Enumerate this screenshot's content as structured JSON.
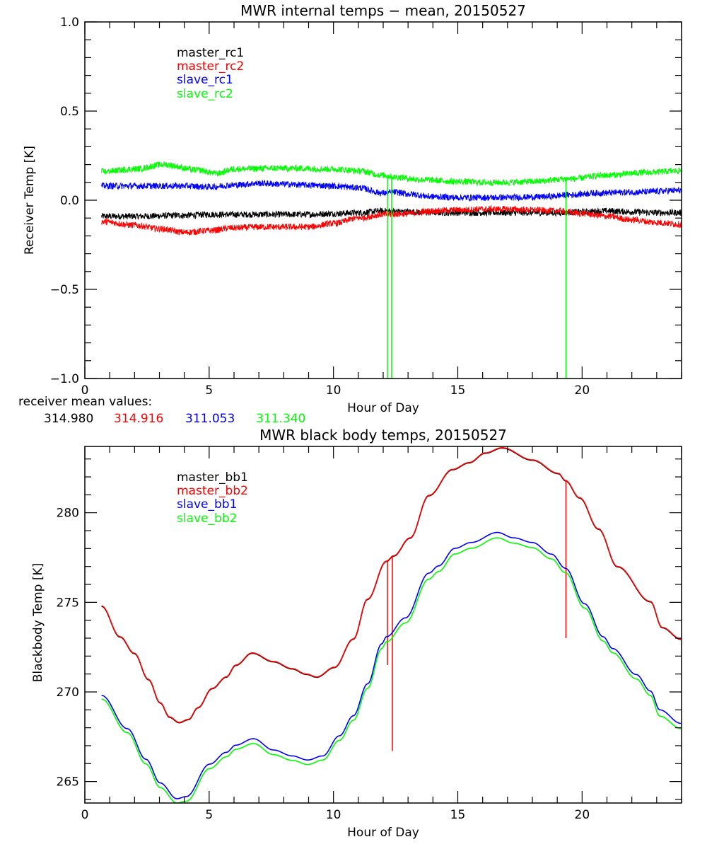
{
  "chart_data": [
    {
      "type": "line",
      "title": "MWR internal temps − mean, 20150527",
      "xlabel": "Hour of Day",
      "ylabel": "Receiver Temp [K]",
      "xlim": [
        0,
        24
      ],
      "ylim": [
        -1.0,
        1.0
      ],
      "xticks": [
        0,
        5,
        10,
        15,
        20
      ],
      "xtick_labels": [
        "0",
        "5",
        "10",
        "15",
        "20"
      ],
      "x_minor_step": 1,
      "yticks": [
        -1.0,
        -0.5,
        0.0,
        0.5,
        1.0
      ],
      "ytick_labels": [
        "−1.0",
        "−0.5",
        "0.0",
        "0.5",
        "1.0"
      ],
      "y_minor_step": 0.1,
      "grid": false,
      "legend_position": "top-left",
      "noise_amplitude": 0.018,
      "series": [
        {
          "name": "master_rc1",
          "color": "#000000",
          "x": [
            0.67,
            2,
            4,
            5,
            7,
            9,
            10,
            11,
            12,
            13,
            14,
            15,
            16,
            17,
            18,
            19,
            20,
            21,
            22,
            23,
            24
          ],
          "y": [
            -0.09,
            -0.09,
            -0.085,
            -0.08,
            -0.08,
            -0.08,
            -0.075,
            -0.07,
            -0.06,
            -0.065,
            -0.07,
            -0.07,
            -0.07,
            -0.07,
            -0.07,
            -0.07,
            -0.065,
            -0.06,
            -0.065,
            -0.07,
            -0.07
          ]
        },
        {
          "name": "master_rc2",
          "color": "#ff0000",
          "x": [
            0.67,
            2,
            3,
            4,
            5,
            6,
            7,
            8,
            9,
            10,
            11,
            12,
            13,
            14,
            15,
            16,
            17,
            18,
            19,
            20,
            21,
            22,
            23,
            24
          ],
          "y": [
            -0.12,
            -0.14,
            -0.16,
            -0.18,
            -0.17,
            -0.155,
            -0.15,
            -0.15,
            -0.15,
            -0.13,
            -0.1,
            -0.08,
            -0.075,
            -0.06,
            -0.055,
            -0.05,
            -0.05,
            -0.055,
            -0.06,
            -0.075,
            -0.09,
            -0.11,
            -0.125,
            -0.135
          ]
        },
        {
          "name": "slave_rc1",
          "color": "#0000ff",
          "x": [
            0.67,
            2,
            4,
            5,
            6,
            7,
            8,
            9,
            10,
            11,
            12,
            12.5,
            13,
            14,
            15,
            16,
            17,
            18,
            18.5,
            19.5,
            20.5,
            22,
            24
          ],
          "y": [
            0.08,
            0.08,
            0.08,
            0.075,
            0.085,
            0.095,
            0.09,
            0.085,
            0.08,
            0.07,
            0.04,
            0.045,
            0.035,
            0.02,
            0.015,
            0.015,
            0.015,
            0.018,
            0.02,
            0.03,
            0.04,
            0.045,
            0.055
          ]
        },
        {
          "name": "slave_rc2",
          "color": "#00ff00",
          "x": [
            0.67,
            2,
            3.2,
            4.5,
            5.3,
            6,
            8,
            10,
            11,
            12,
            12.5,
            13.5,
            15,
            16,
            17,
            18,
            19.5,
            21,
            22.5,
            24
          ],
          "y": [
            0.16,
            0.175,
            0.2,
            0.17,
            0.15,
            0.175,
            0.18,
            0.175,
            0.165,
            0.14,
            0.13,
            0.115,
            0.105,
            0.1,
            0.1,
            0.105,
            0.12,
            0.14,
            0.155,
            0.165
          ],
          "spikes": [
            {
              "x": 12.17,
              "to": -1.0
            },
            {
              "x": 12.34,
              "to": -1.0
            },
            {
              "x": 19.35,
              "to": -1.0
            }
          ]
        }
      ],
      "annotations": {
        "label": "receiver mean values:",
        "values": [
          {
            "text": "314.980",
            "color": "#000000"
          },
          {
            "text": "314.916",
            "color": "#ff0000"
          },
          {
            "text": "311.053",
            "color": "#0000ff"
          },
          {
            "text": "311.340",
            "color": "#00ff00"
          }
        ]
      }
    },
    {
      "type": "line",
      "title": "MWR black body temps, 20150527",
      "xlabel": "Hour of Day",
      "ylabel": "Blackbody Temp [K]",
      "xlim": [
        0,
        24
      ],
      "ylim": [
        263.8,
        283.7
      ],
      "xticks": [
        0,
        5,
        10,
        15,
        20
      ],
      "xtick_labels": [
        "0",
        "5",
        "10",
        "15",
        "20"
      ],
      "x_minor_step": 1,
      "yticks": [
        265,
        270,
        275,
        280
      ],
      "ytick_labels": [
        "265",
        "270",
        "275",
        "280"
      ],
      "y_minor_step": 1,
      "grid": false,
      "legend_position": "top-left",
      "series": [
        {
          "name": "master_bb1",
          "color": "#000000",
          "x": [
            0.67,
            1.42,
            1.99,
            2.56,
            3.03,
            3.41,
            3.79,
            4.17,
            4.55,
            5.12,
            5.69,
            6.07,
            6.73,
            7.58,
            8.34,
            8.9,
            9.33,
            10.04,
            10.8,
            11.37,
            12.13,
            12.42,
            13.08,
            13.84,
            14.79,
            15.45,
            16.11,
            16.78,
            18.0,
            19.05,
            19.33,
            19.9,
            20.66,
            21.42,
            22.75,
            23.22,
            23.98
          ],
          "y": [
            274.8,
            273.08,
            272.16,
            270.7,
            269.4,
            268.6,
            268.3,
            268.47,
            269.13,
            270.2,
            270.84,
            271.5,
            272.18,
            271.7,
            271.3,
            271.0,
            270.84,
            271.38,
            272.96,
            275.18,
            277.3,
            277.6,
            278.6,
            280.97,
            282.42,
            282.8,
            283.34,
            283.63,
            282.95,
            282.2,
            281.8,
            280.84,
            279.1,
            277.0,
            275.05,
            273.6,
            272.95
          ]
        },
        {
          "name": "master_bb2",
          "color": "#ff0000",
          "x": [
            0.67,
            1.42,
            1.99,
            2.56,
            3.03,
            3.41,
            3.79,
            4.17,
            4.55,
            5.12,
            5.69,
            6.07,
            6.73,
            7.58,
            8.34,
            8.9,
            9.33,
            10.04,
            10.8,
            11.37,
            12.13,
            12.42,
            13.08,
            13.84,
            14.79,
            15.45,
            16.11,
            16.78,
            18.0,
            19.05,
            19.33,
            19.9,
            20.66,
            21.42,
            22.75,
            23.22,
            23.98
          ],
          "y": [
            274.8,
            273.08,
            272.16,
            270.7,
            269.4,
            268.6,
            268.3,
            268.47,
            269.13,
            270.2,
            270.84,
            271.5,
            272.18,
            271.7,
            271.3,
            271.0,
            270.84,
            271.38,
            272.96,
            275.18,
            277.3,
            277.6,
            278.6,
            280.97,
            282.42,
            282.8,
            283.34,
            283.63,
            282.95,
            282.2,
            281.8,
            280.84,
            279.1,
            277.0,
            275.05,
            273.6,
            272.95
          ],
          "spikes": [
            {
              "x": 12.17,
              "to": 271.5
            },
            {
              "x": 12.37,
              "to": 266.7
            },
            {
              "x": 19.35,
              "to": 273.0
            }
          ]
        },
        {
          "name": "slave_bb1",
          "color": "#0000ff",
          "x": [
            0.67,
            1.71,
            2.46,
            3.03,
            3.7,
            4.08,
            5.02,
            5.69,
            6.07,
            6.78,
            7.58,
            8.34,
            8.96,
            9.57,
            10.24,
            10.8,
            11.37,
            11.94,
            12.13,
            12.89,
            13.84,
            14.22,
            14.88,
            15.54,
            16.59,
            17.25,
            18.0,
            18.77,
            19.33,
            20.1,
            20.85,
            21.23,
            22.18,
            22.75,
            23.12,
            23.98
          ],
          "y": [
            269.81,
            267.95,
            266.24,
            264.92,
            264.04,
            264.16,
            265.97,
            266.63,
            267.03,
            267.39,
            266.76,
            266.43,
            266.2,
            266.43,
            267.55,
            268.67,
            270.45,
            272.68,
            273.08,
            274.13,
            276.63,
            277.03,
            278.01,
            278.34,
            278.9,
            278.6,
            278.34,
            277.69,
            276.9,
            274.92,
            273.08,
            272.42,
            270.97,
            270.05,
            269.0,
            268.24
          ]
        },
        {
          "name": "slave_bb2",
          "color": "#00ff00",
          "x": [
            0.67,
            1.71,
            2.46,
            3.03,
            3.7,
            4.08,
            5.02,
            5.69,
            6.07,
            6.78,
            7.58,
            8.34,
            8.96,
            9.57,
            10.24,
            10.8,
            11.37,
            11.94,
            12.13,
            12.89,
            13.84,
            14.22,
            14.88,
            15.54,
            16.59,
            17.25,
            18.0,
            18.77,
            19.33,
            20.1,
            20.85,
            21.23,
            22.18,
            22.75,
            23.12,
            23.98
          ],
          "y": [
            269.6,
            267.72,
            265.98,
            264.66,
            263.8,
            263.9,
            265.72,
            266.38,
            266.8,
            267.12,
            266.5,
            266.18,
            265.95,
            266.2,
            267.3,
            268.42,
            270.2,
            272.42,
            272.8,
            273.85,
            276.3,
            276.72,
            277.7,
            278.02,
            278.6,
            278.3,
            278.05,
            277.42,
            276.65,
            274.68,
            272.84,
            272.18,
            270.72,
            269.8,
            268.65,
            267.95
          ]
        }
      ]
    }
  ]
}
